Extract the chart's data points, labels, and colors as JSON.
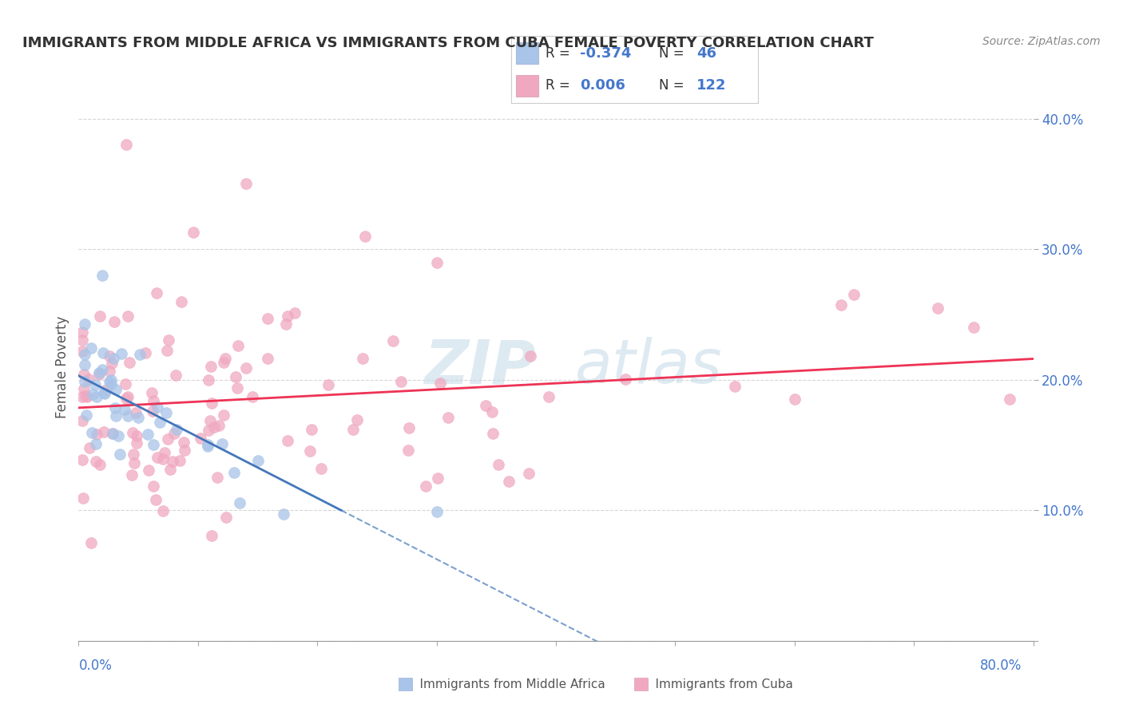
{
  "title": "IMMIGRANTS FROM MIDDLE AFRICA VS IMMIGRANTS FROM CUBA FEMALE POVERTY CORRELATION CHART",
  "source": "Source: ZipAtlas.com",
  "ylabel": "Female Poverty",
  "yticks": [
    0.0,
    0.1,
    0.2,
    0.3,
    0.4
  ],
  "ytick_labels": [
    "",
    "10.0%",
    "20.0%",
    "30.0%",
    "40.0%"
  ],
  "xlim": [
    0.0,
    0.8
  ],
  "ylim": [
    0.0,
    0.42
  ],
  "color_blue": "#a8c4e8",
  "color_pink": "#f0a8c0",
  "line_blue": "#4477bb",
  "line_pink": "#ee3355",
  "background_color": "#ffffff",
  "grid_color": "#cccccc",
  "legend_text_color": "#4477cc",
  "watermark_color": "#d8e8f0",
  "bottom_legend_color": "#555555"
}
